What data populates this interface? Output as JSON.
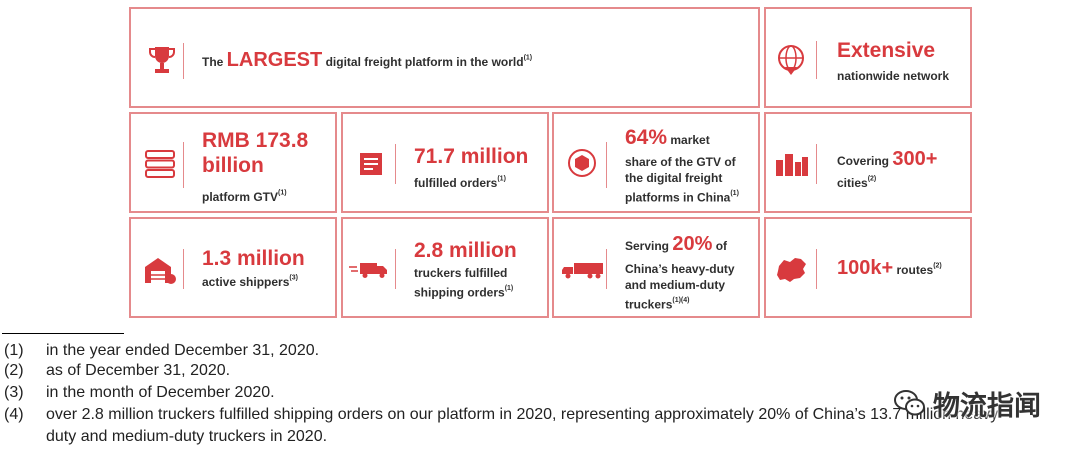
{
  "hero": {
    "pre": "The ",
    "big": "LARGEST",
    "post": " digital freight platform in the world",
    "sup": "(1)"
  },
  "network": {
    "big": "Extensive",
    "sub": "nationwide network"
  },
  "gtv": {
    "big": "RMB 173.8 billion",
    "sub": "platform GTV",
    "sup": "(1)"
  },
  "orders": {
    "big": "71.7 million",
    "sub": "fulfilled orders",
    "sup": "(1)"
  },
  "share": {
    "big": "64%",
    "line1": " market",
    "rest": "share of the GTV of the digital freight platforms in China",
    "sup": "(1)"
  },
  "cities": {
    "pre": "Covering ",
    "big": "300+",
    "sub": "cities",
    "sup": "(2)"
  },
  "shippers": {
    "big": "1.3 million",
    "sub": "active shippers",
    "sup": "(3)"
  },
  "truckers": {
    "big": "2.8 million",
    "sub": "truckers fulfilled shipping orders",
    "sup": "(1)"
  },
  "serving": {
    "pre": "Serving ",
    "big": "20%",
    "post": " of",
    "rest": "China’s heavy-duty and medium-duty truckers",
    "sup": "(1)(4)"
  },
  "routes": {
    "big": "100k+",
    "sub": " routes",
    "sup": "(2)"
  },
  "footnotes": [
    {
      "num": "(1)",
      "text": "in the year ended December 31, 2020."
    },
    {
      "num": "(2)",
      "text": "as of December 31, 2020."
    },
    {
      "num": "(3)",
      "text": "in the month of December 2020."
    },
    {
      "num": "(4)",
      "text": "over 2.8 million truckers fulfilled shipping orders on our platform in 2020, representing approximately 20% of China’s 13.7 million heavy-"
    },
    {
      "num": "",
      "text": "duty and medium-duty truckers in 2020."
    }
  ],
  "watermark": {
    "text": "物流指闻",
    "icon": "wechat-icon"
  },
  "colors": {
    "accent": "#d83a3e",
    "border": "#e58a8c"
  }
}
